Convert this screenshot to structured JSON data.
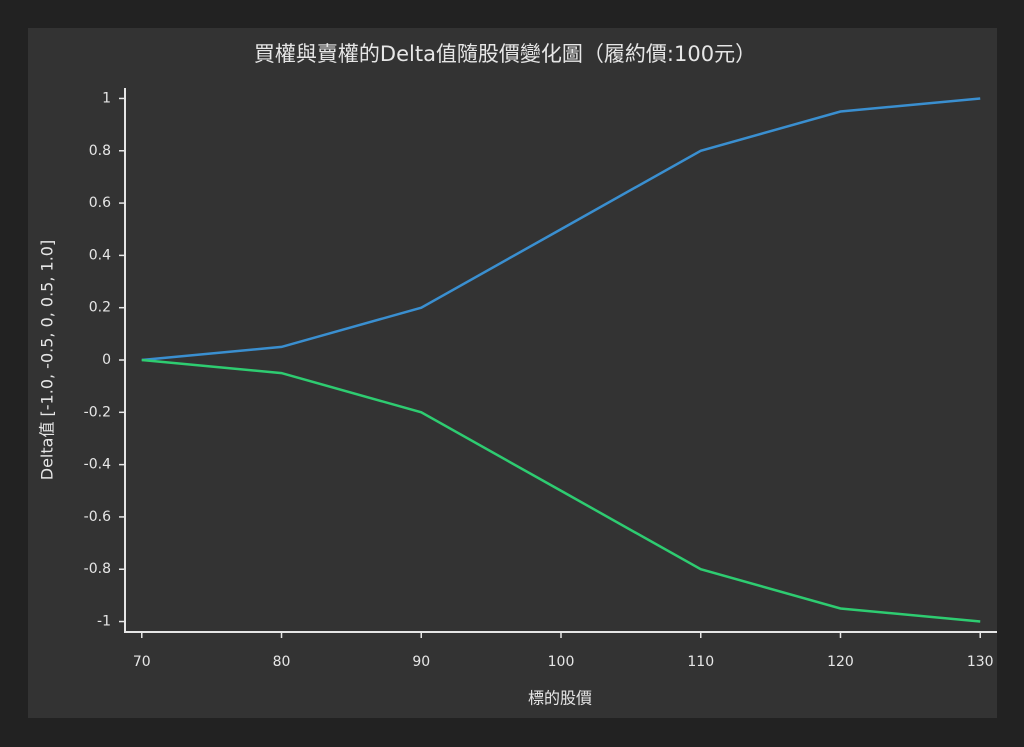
{
  "chart_data": {
    "type": "line",
    "title": "買權與賣權的Delta值隨股價變化圖（履約價:100元）",
    "x_label": "標的股價",
    "y_label": "Delta值 [-1.0, -0.5, 0, 0.5, 1.0]",
    "x": [
      70,
      80,
      90,
      100,
      110,
      120,
      130
    ],
    "series": [
      {
        "color": "#3a8fd0",
        "values": [
          0,
          0.05,
          0.2,
          0.5,
          0.8,
          0.95,
          1.0
        ]
      },
      {
        "color": "#2ecc71",
        "values": [
          0,
          -0.05,
          -0.2,
          -0.5,
          -0.8,
          -0.95,
          -1.0
        ]
      }
    ],
    "xlim": [
      68.8,
      131.2
    ],
    "ylim": [
      -1.04,
      1.04
    ],
    "xticks": [
      70,
      80,
      90,
      100,
      110,
      120,
      130
    ],
    "yticks": [
      1,
      0.8,
      0.6,
      0.4,
      0.2,
      0,
      -0.2,
      -0.4,
      -0.6,
      -0.8,
      -1
    ],
    "grid": false
  }
}
